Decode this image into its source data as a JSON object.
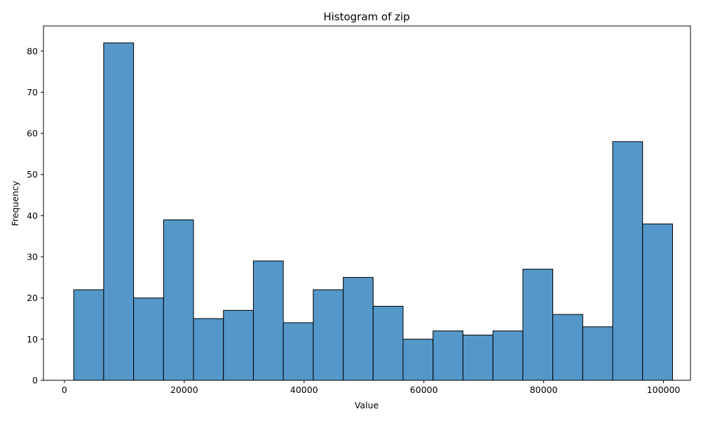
{
  "chart_data": {
    "type": "bar",
    "title": "Histogram of zip",
    "xlabel": "Value",
    "ylabel": "Frequency",
    "xlim": [
      -3500,
      104500
    ],
    "ylim": [
      0,
      86.1
    ],
    "grid": false,
    "bin_edges": [
      1550,
      6548,
      11546,
      16544,
      21542,
      26540,
      31538,
      36536,
      41534,
      46532,
      51530,
      56528,
      61526,
      66524,
      71522,
      76520,
      81518,
      86516,
      91514,
      96512,
      101510
    ],
    "values": [
      22,
      82,
      20,
      39,
      15,
      17,
      29,
      14,
      22,
      25,
      18,
      10,
      12,
      11,
      12,
      27,
      16,
      13,
      58,
      38
    ],
    "x_ticks": [
      0,
      20000,
      40000,
      60000,
      80000,
      100000
    ],
    "x_tick_labels": [
      "0",
      "20000",
      "40000",
      "60000",
      "80000",
      "100000"
    ],
    "y_ticks": [
      0,
      10,
      20,
      30,
      40,
      50,
      60,
      70,
      80
    ],
    "y_tick_labels": [
      "0",
      "10",
      "20",
      "30",
      "40",
      "50",
      "60",
      "70",
      "80"
    ],
    "bar_color": "#5497c8",
    "edge_color": "#000000"
  }
}
